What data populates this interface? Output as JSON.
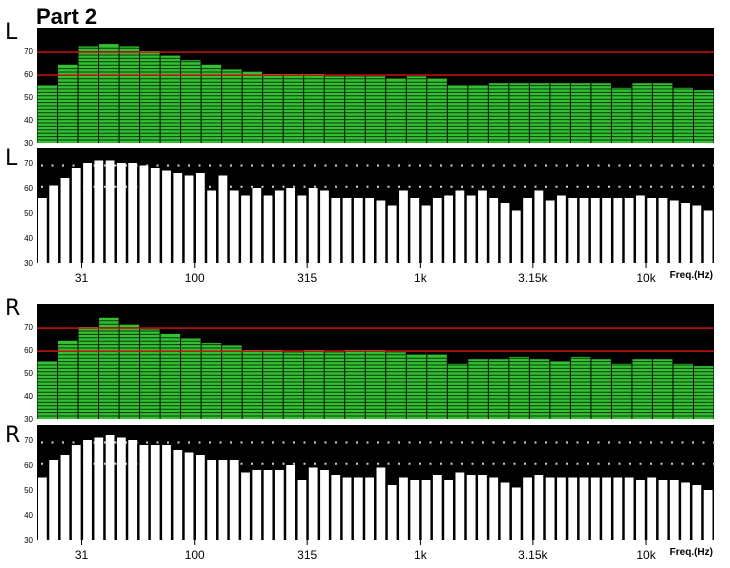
{
  "title": "Part 2",
  "colors": {
    "rta_bar": "#33c033",
    "rta_stripe": "#0a3a0a",
    "ref_line": "#cc1111",
    "panel_bg": "#000000",
    "level_bar": "#ffffff",
    "dots": "#d0d0d0"
  },
  "chart_data": [
    {
      "type": "bar",
      "label": "L",
      "style": "rta",
      "ylim": [
        30,
        80
      ],
      "yticks": [
        30,
        40,
        50,
        60,
        70
      ],
      "reference_lines": [
        69.5,
        59.5
      ],
      "values": [
        55,
        64,
        72,
        73,
        72,
        70,
        68,
        66,
        64,
        62,
        61,
        60,
        60,
        60,
        59,
        59,
        59,
        58,
        59,
        58,
        55,
        55,
        56,
        56,
        56,
        56,
        56,
        56,
        54,
        56,
        56,
        54,
        53
      ]
    },
    {
      "type": "bar",
      "label": "L",
      "style": "level",
      "ylim": [
        30,
        76
      ],
      "yticks": [
        30,
        40,
        50,
        60,
        70
      ],
      "reference_dots": [
        69,
        60.5
      ],
      "xticks": [
        "31",
        "100",
        "315",
        "1k",
        "3.15k",
        "10k"
      ],
      "xlabel": "Freq.(Hz)",
      "values": [
        56,
        61,
        64,
        68,
        70,
        71,
        71,
        70,
        70,
        69,
        68,
        67,
        66,
        65,
        66,
        59,
        65,
        59,
        57,
        60,
        57,
        59,
        60,
        57,
        60,
        59,
        56,
        56,
        56,
        56,
        55,
        53,
        59,
        56,
        53,
        56,
        57,
        59,
        57,
        59,
        56,
        54,
        51,
        56,
        59,
        55,
        57,
        56,
        56,
        56,
        56,
        56,
        56,
        57,
        56,
        56,
        55,
        54,
        53,
        51
      ]
    },
    {
      "type": "bar",
      "label": "R",
      "style": "rta",
      "ylim": [
        30,
        80
      ],
      "yticks": [
        30,
        40,
        50,
        60,
        70
      ],
      "reference_lines": [
        69.5,
        59.5
      ],
      "values": [
        55,
        64,
        70,
        74,
        71,
        69,
        67,
        65,
        63,
        62,
        60,
        60,
        59,
        60,
        59,
        60,
        60,
        59,
        58,
        58,
        54,
        56,
        56,
        57,
        56,
        55,
        57,
        56,
        54,
        56,
        56,
        54,
        53
      ]
    },
    {
      "type": "bar",
      "label": "R",
      "style": "level",
      "ylim": [
        30,
        76
      ],
      "yticks": [
        30,
        40,
        50,
        60,
        70
      ],
      "reference_dots": [
        69,
        60.5
      ],
      "xticks": [
        "31",
        "100",
        "315",
        "1k",
        "3.15k",
        "10k"
      ],
      "xlabel": "Freq.(Hz)",
      "values": [
        55,
        62,
        64,
        68,
        70,
        71,
        72,
        71,
        70,
        68,
        68,
        68,
        66,
        65,
        64,
        62,
        62,
        62,
        57,
        58,
        58,
        58,
        60,
        54,
        59,
        58,
        56,
        55,
        55,
        55,
        59,
        52,
        55,
        54,
        54,
        56,
        54,
        57,
        56,
        56,
        55,
        53,
        51,
        55,
        56,
        55,
        55,
        55,
        55,
        55,
        55,
        55,
        55,
        54,
        55,
        54,
        54,
        53,
        52,
        50
      ]
    }
  ]
}
